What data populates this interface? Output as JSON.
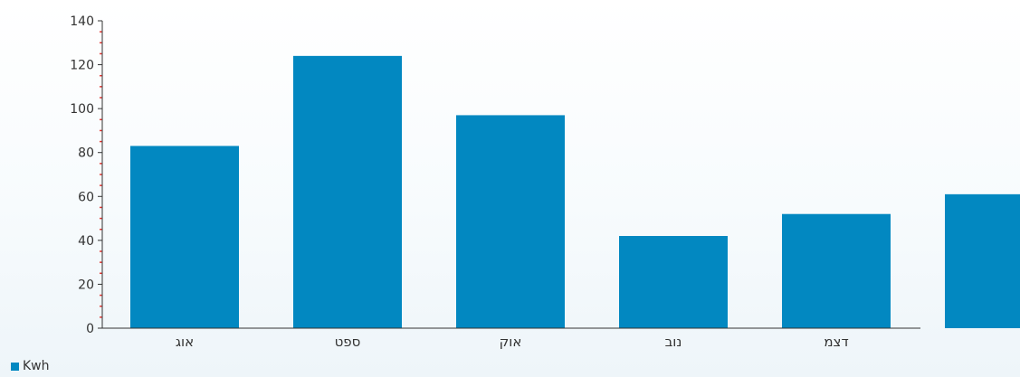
{
  "chart_data": {
    "type": "bar",
    "categories": [
      "אוג",
      "ספט",
      "אוק",
      "נוב",
      "דצמ",
      ""
    ],
    "series": [
      {
        "name": "Kwh",
        "values": [
          83,
          124,
          97,
          42,
          52,
          61
        ]
      }
    ],
    "ylim": [
      0,
      140
    ],
    "yticks": [
      0,
      20,
      40,
      60,
      80,
      100,
      120,
      140
    ],
    "grid": false,
    "legend": "bottom-left",
    "colors": {
      "bar": "#0288c1",
      "axis": "#333333",
      "minor_tick": "#e53935",
      "text": "#333333"
    }
  }
}
